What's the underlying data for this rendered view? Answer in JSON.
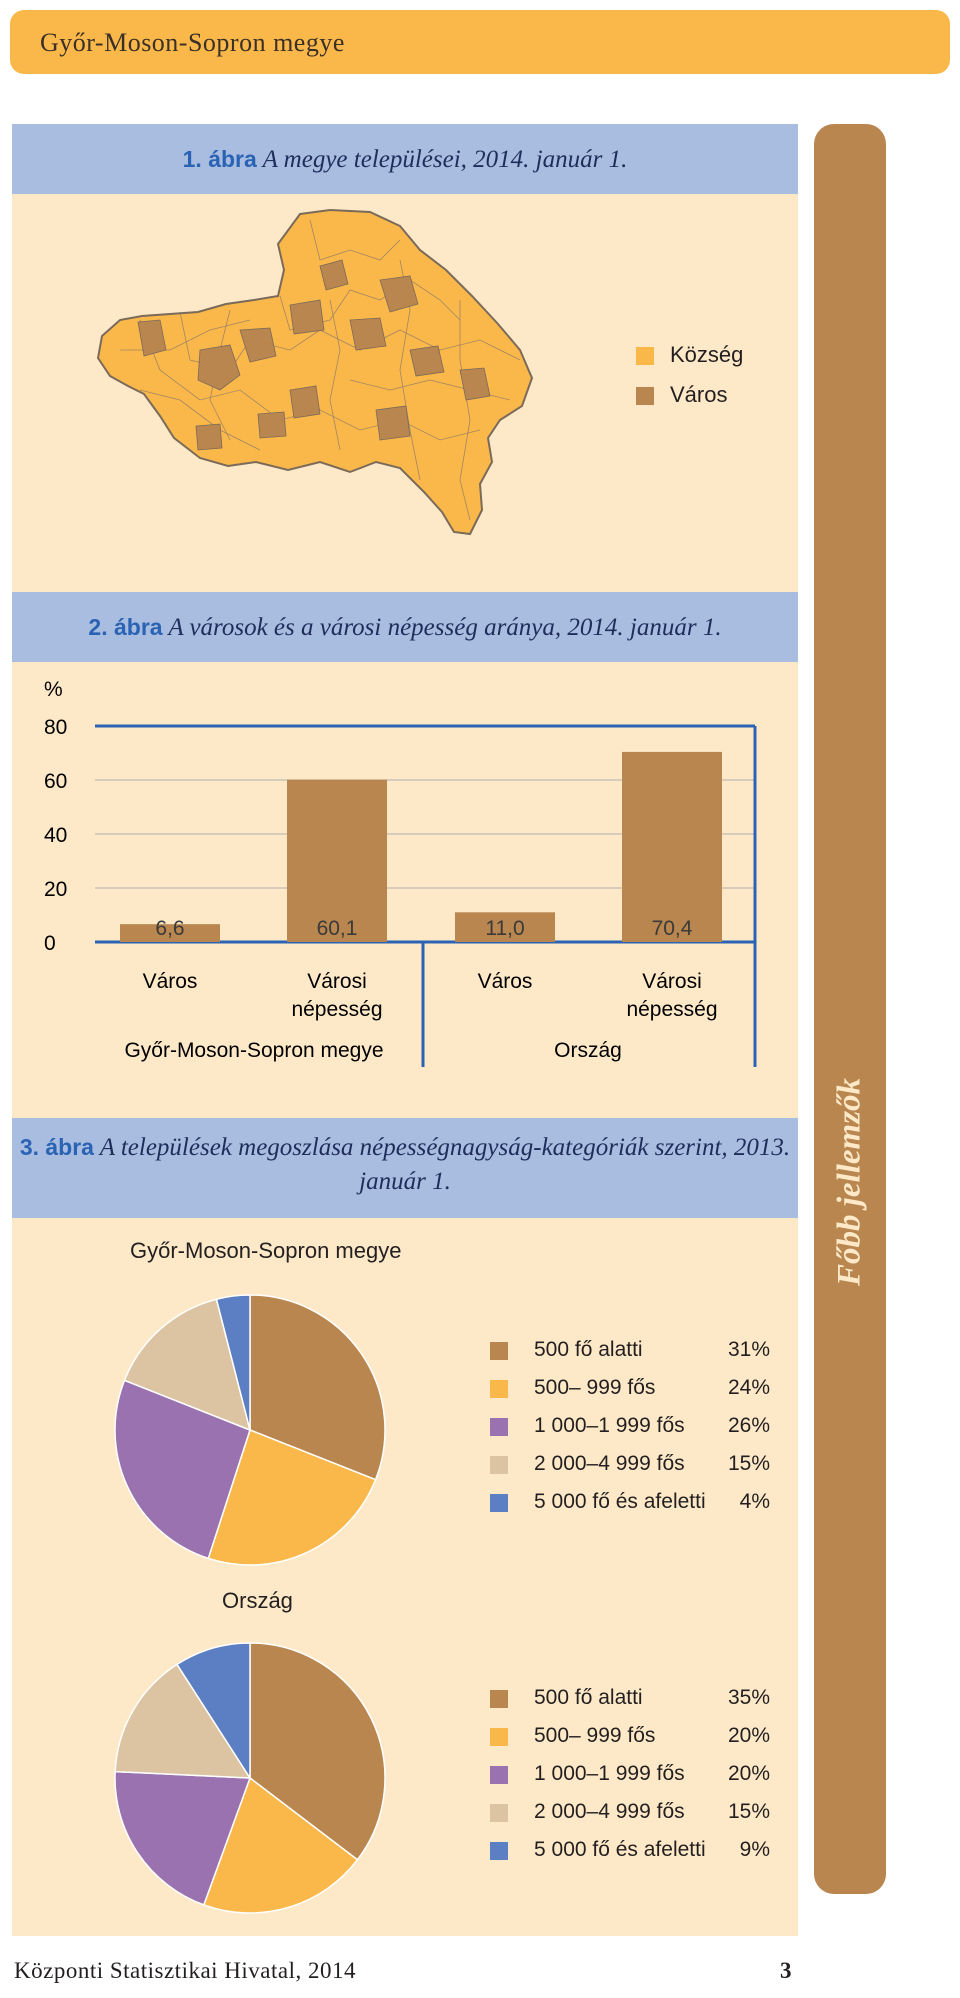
{
  "header": {
    "title": "Győr-Moson-Sopron megye"
  },
  "sidebar": {
    "label": "Főbb jellemzők"
  },
  "figure1": {
    "number": "1. ábra",
    "title": "A megye települései, 2014. január 1.",
    "legend": [
      {
        "label": "Község",
        "color": "#fbb84a"
      },
      {
        "label": "Város",
        "color": "#b8864e"
      }
    ]
  },
  "chart_data": [
    {
      "type": "bar",
      "title": "A városok és a városi népesség aránya, 2014. január 1.",
      "number": "2. ábra",
      "unit_label": "%",
      "ylim": [
        0,
        80
      ],
      "yticks": [
        "0",
        "20",
        "40",
        "60",
        "80"
      ],
      "groups": [
        {
          "name": "Győr-Moson-Sopron megye",
          "categories": [
            "Város",
            "Városi népesség"
          ],
          "values": [
            6.6,
            60.1
          ],
          "labels": [
            "6,6",
            "60,1"
          ]
        },
        {
          "name": "Ország",
          "categories": [
            "Város",
            "Városi népesség"
          ],
          "values": [
            11.0,
            70.4
          ],
          "labels": [
            "11,0",
            "70,4"
          ]
        }
      ],
      "bar_color": "#b8864e",
      "grid": true
    },
    {
      "type": "pie",
      "number": "3. ábra",
      "title": "A települések megoszlása népességnagyság-kategóriák szerint, 2013. január 1.",
      "subtitle": "Győr-Moson-Sopron megye",
      "categories": [
        "500 fő alatti",
        "500– 999 fős",
        "1 000–1 999 fős",
        "2 000–4 999 fős",
        "5 000 fő és afeletti"
      ],
      "values": [
        31,
        24,
        26,
        15,
        4
      ],
      "value_labels": [
        "31%",
        "24%",
        "26%",
        "15%",
        "4%"
      ],
      "colors": [
        "#b8864e",
        "#fbb84a",
        "#9b72b0",
        "#dcc3a2",
        "#5b7fc2"
      ]
    },
    {
      "type": "pie",
      "subtitle": "Ország",
      "categories": [
        "500 fő alatti",
        "500– 999 fős",
        "1 000–1 999 fős",
        "2 000–4 999 fős",
        "5 000 fő és afeletti"
      ],
      "values": [
        35,
        20,
        20,
        15,
        9
      ],
      "value_labels": [
        "35%",
        "20%",
        "20%",
        "15%",
        "9%"
      ],
      "colors": [
        "#b8864e",
        "#fbb84a",
        "#9b72b0",
        "#dcc3a2",
        "#5b7fc2"
      ]
    }
  ],
  "footer": {
    "text": "Központi Statisztikai Hivatal, 2014",
    "page": "3"
  }
}
